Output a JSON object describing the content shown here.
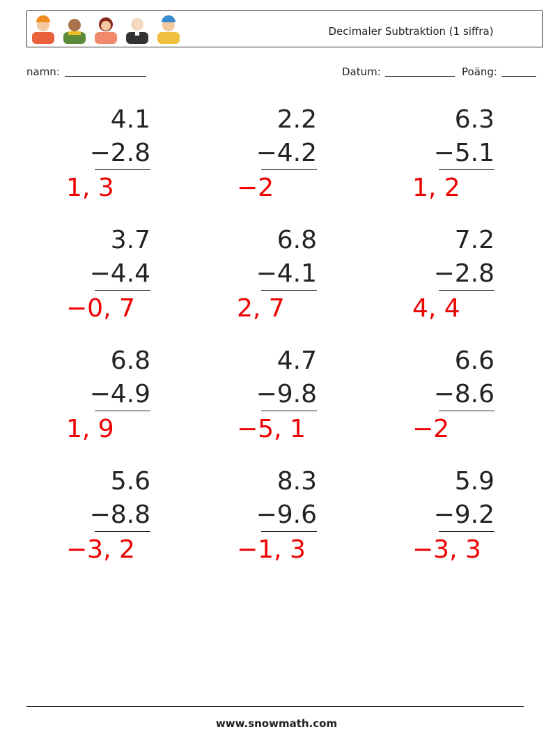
{
  "header": {
    "title": "Decimaler Subtraktion (1 siffra)"
  },
  "fields": {
    "name": "namn:",
    "date": "Datum:",
    "score": "Poäng:"
  },
  "problems": [
    {
      "top": "4.1",
      "bottom": "−2.8",
      "answer": "1, 3"
    },
    {
      "top": "2.2",
      "bottom": "−4.2",
      "answer": "−2"
    },
    {
      "top": "6.3",
      "bottom": "−5.1",
      "answer": "1, 2"
    },
    {
      "top": "3.7",
      "bottom": "−4.4",
      "answer": "−0, 7"
    },
    {
      "top": "6.8",
      "bottom": "−4.1",
      "answer": "2, 7"
    },
    {
      "top": "7.2",
      "bottom": "−2.8",
      "answer": "4, 4"
    },
    {
      "top": "6.8",
      "bottom": "−4.9",
      "answer": "1, 9"
    },
    {
      "top": "4.7",
      "bottom": "−9.8",
      "answer": "−5, 1"
    },
    {
      "top": "6.6",
      "bottom": "−8.6",
      "answer": "−2"
    },
    {
      "top": "5.6",
      "bottom": "−8.8",
      "answer": "−3, 2"
    },
    {
      "top": "8.3",
      "bottom": "−9.6",
      "answer": "−1, 3"
    },
    {
      "top": "5.9",
      "bottom": "−9.2",
      "answer": "−3, 3"
    }
  ],
  "footer": {
    "site": "www.snowmath.com"
  }
}
